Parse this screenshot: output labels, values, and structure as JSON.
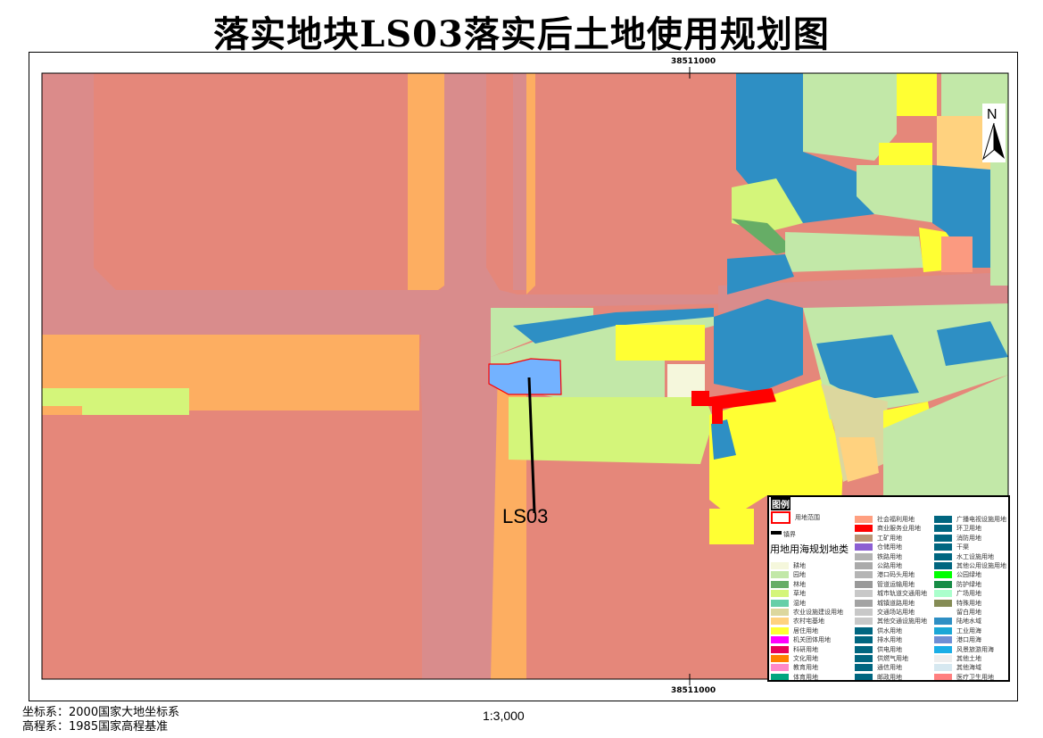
{
  "title": "落实地块LS03落实后土地使用规划图",
  "coord_top": "38511000",
  "coord_bottom": "38511000",
  "parcel_label": "LS03",
  "north_label": "N",
  "scale": "1:3,000",
  "coord_system": "坐标系：2000国家大地坐标系",
  "elevation_system": "高程系：1985国家高程基准",
  "legend": {
    "title": "图例",
    "boundary_label": "用地范围",
    "town_label": "镇界",
    "category_title": "用地用海规划地类",
    "columns": [
      [
        {
          "name": "耕地",
          "color": "#f5f7dc"
        },
        {
          "name": "园地",
          "color": "#c2e8a8"
        },
        {
          "name": "林地",
          "color": "#66ad66"
        },
        {
          "name": "草地",
          "color": "#d4f57a"
        },
        {
          "name": "湿地",
          "color": "#66cfa8"
        },
        {
          "name": "农业设施建设用地",
          "color": "#dcd79e"
        },
        {
          "name": "农村宅基地",
          "color": "#ffd27f"
        },
        {
          "name": "居住用地",
          "color": "#ffff33"
        },
        {
          "name": "机关团体用地",
          "color": "#ff00ff"
        },
        {
          "name": "科研用地",
          "color": "#e8005a"
        },
        {
          "name": "文化用地",
          "color": "#ff8000"
        },
        {
          "name": "教育用地",
          "color": "#ff88c8"
        },
        {
          "name": "体育用地",
          "color": "#00a57f"
        }
      ],
      [
        {
          "name": "社会福利用地",
          "color": "#ff9f80"
        },
        {
          "name": "商业服务业用地",
          "color": "#ff0000"
        },
        {
          "name": "工矿用地",
          "color": "#b99677"
        },
        {
          "name": "仓储用地",
          "color": "#8c5fd2"
        },
        {
          "name": "铁路用地",
          "color": "#b3b3b3"
        },
        {
          "name": "公路用地",
          "color": "#aaaaaa"
        },
        {
          "name": "港口码头用地",
          "color": "#b5b5b5"
        },
        {
          "name": "管道运输用地",
          "color": "#999999"
        },
        {
          "name": "城市轨道交通用地",
          "color": "#c8c8c8"
        },
        {
          "name": "城镇道路用地",
          "color": "#a3a3a3"
        },
        {
          "name": "交通场站用地",
          "color": "#c8c8c8"
        },
        {
          "name": "其他交通设施用地",
          "color": "#c8c8c8"
        },
        {
          "name": "供水用地",
          "color": "#006680"
        },
        {
          "name": "排水用地",
          "color": "#006680"
        },
        {
          "name": "供电用地",
          "color": "#006680"
        },
        {
          "name": "供燃气用地",
          "color": "#006680"
        },
        {
          "name": "通信用地",
          "color": "#006680"
        },
        {
          "name": "邮政用地",
          "color": "#006680"
        }
      ],
      [
        {
          "name": "广播电视设施用地",
          "color": "#006680"
        },
        {
          "name": "环卫用地",
          "color": "#006680"
        },
        {
          "name": "消防用地",
          "color": "#006680"
        },
        {
          "name": "干渠",
          "color": "#006680"
        },
        {
          "name": "水工设施用地",
          "color": "#006680"
        },
        {
          "name": "其他公用设施用地",
          "color": "#006680"
        },
        {
          "name": "公园绿地",
          "color": "#00ff00"
        },
        {
          "name": "防护绿地",
          "color": "#168c45"
        },
        {
          "name": "广场用地",
          "color": "#aaffcc"
        },
        {
          "name": "特殊用地",
          "color": "#858c55"
        },
        {
          "name": "留白用地",
          "color": "#ffffff"
        },
        {
          "name": "陆地水域",
          "color": "#2e8fc4"
        },
        {
          "name": "工业用海",
          "color": "#1aa7d6"
        },
        {
          "name": "港口用海",
          "color": "#6f8ed4"
        },
        {
          "name": "风景旅游用海",
          "color": "#1aaee6"
        },
        {
          "name": "其他土地",
          "color": "#eeeeee"
        },
        {
          "name": "其他海域",
          "color": "#d6e8f0"
        },
        {
          "name": "医疗卫生用地",
          "color": "#ff7f7f"
        }
      ]
    ]
  }
}
